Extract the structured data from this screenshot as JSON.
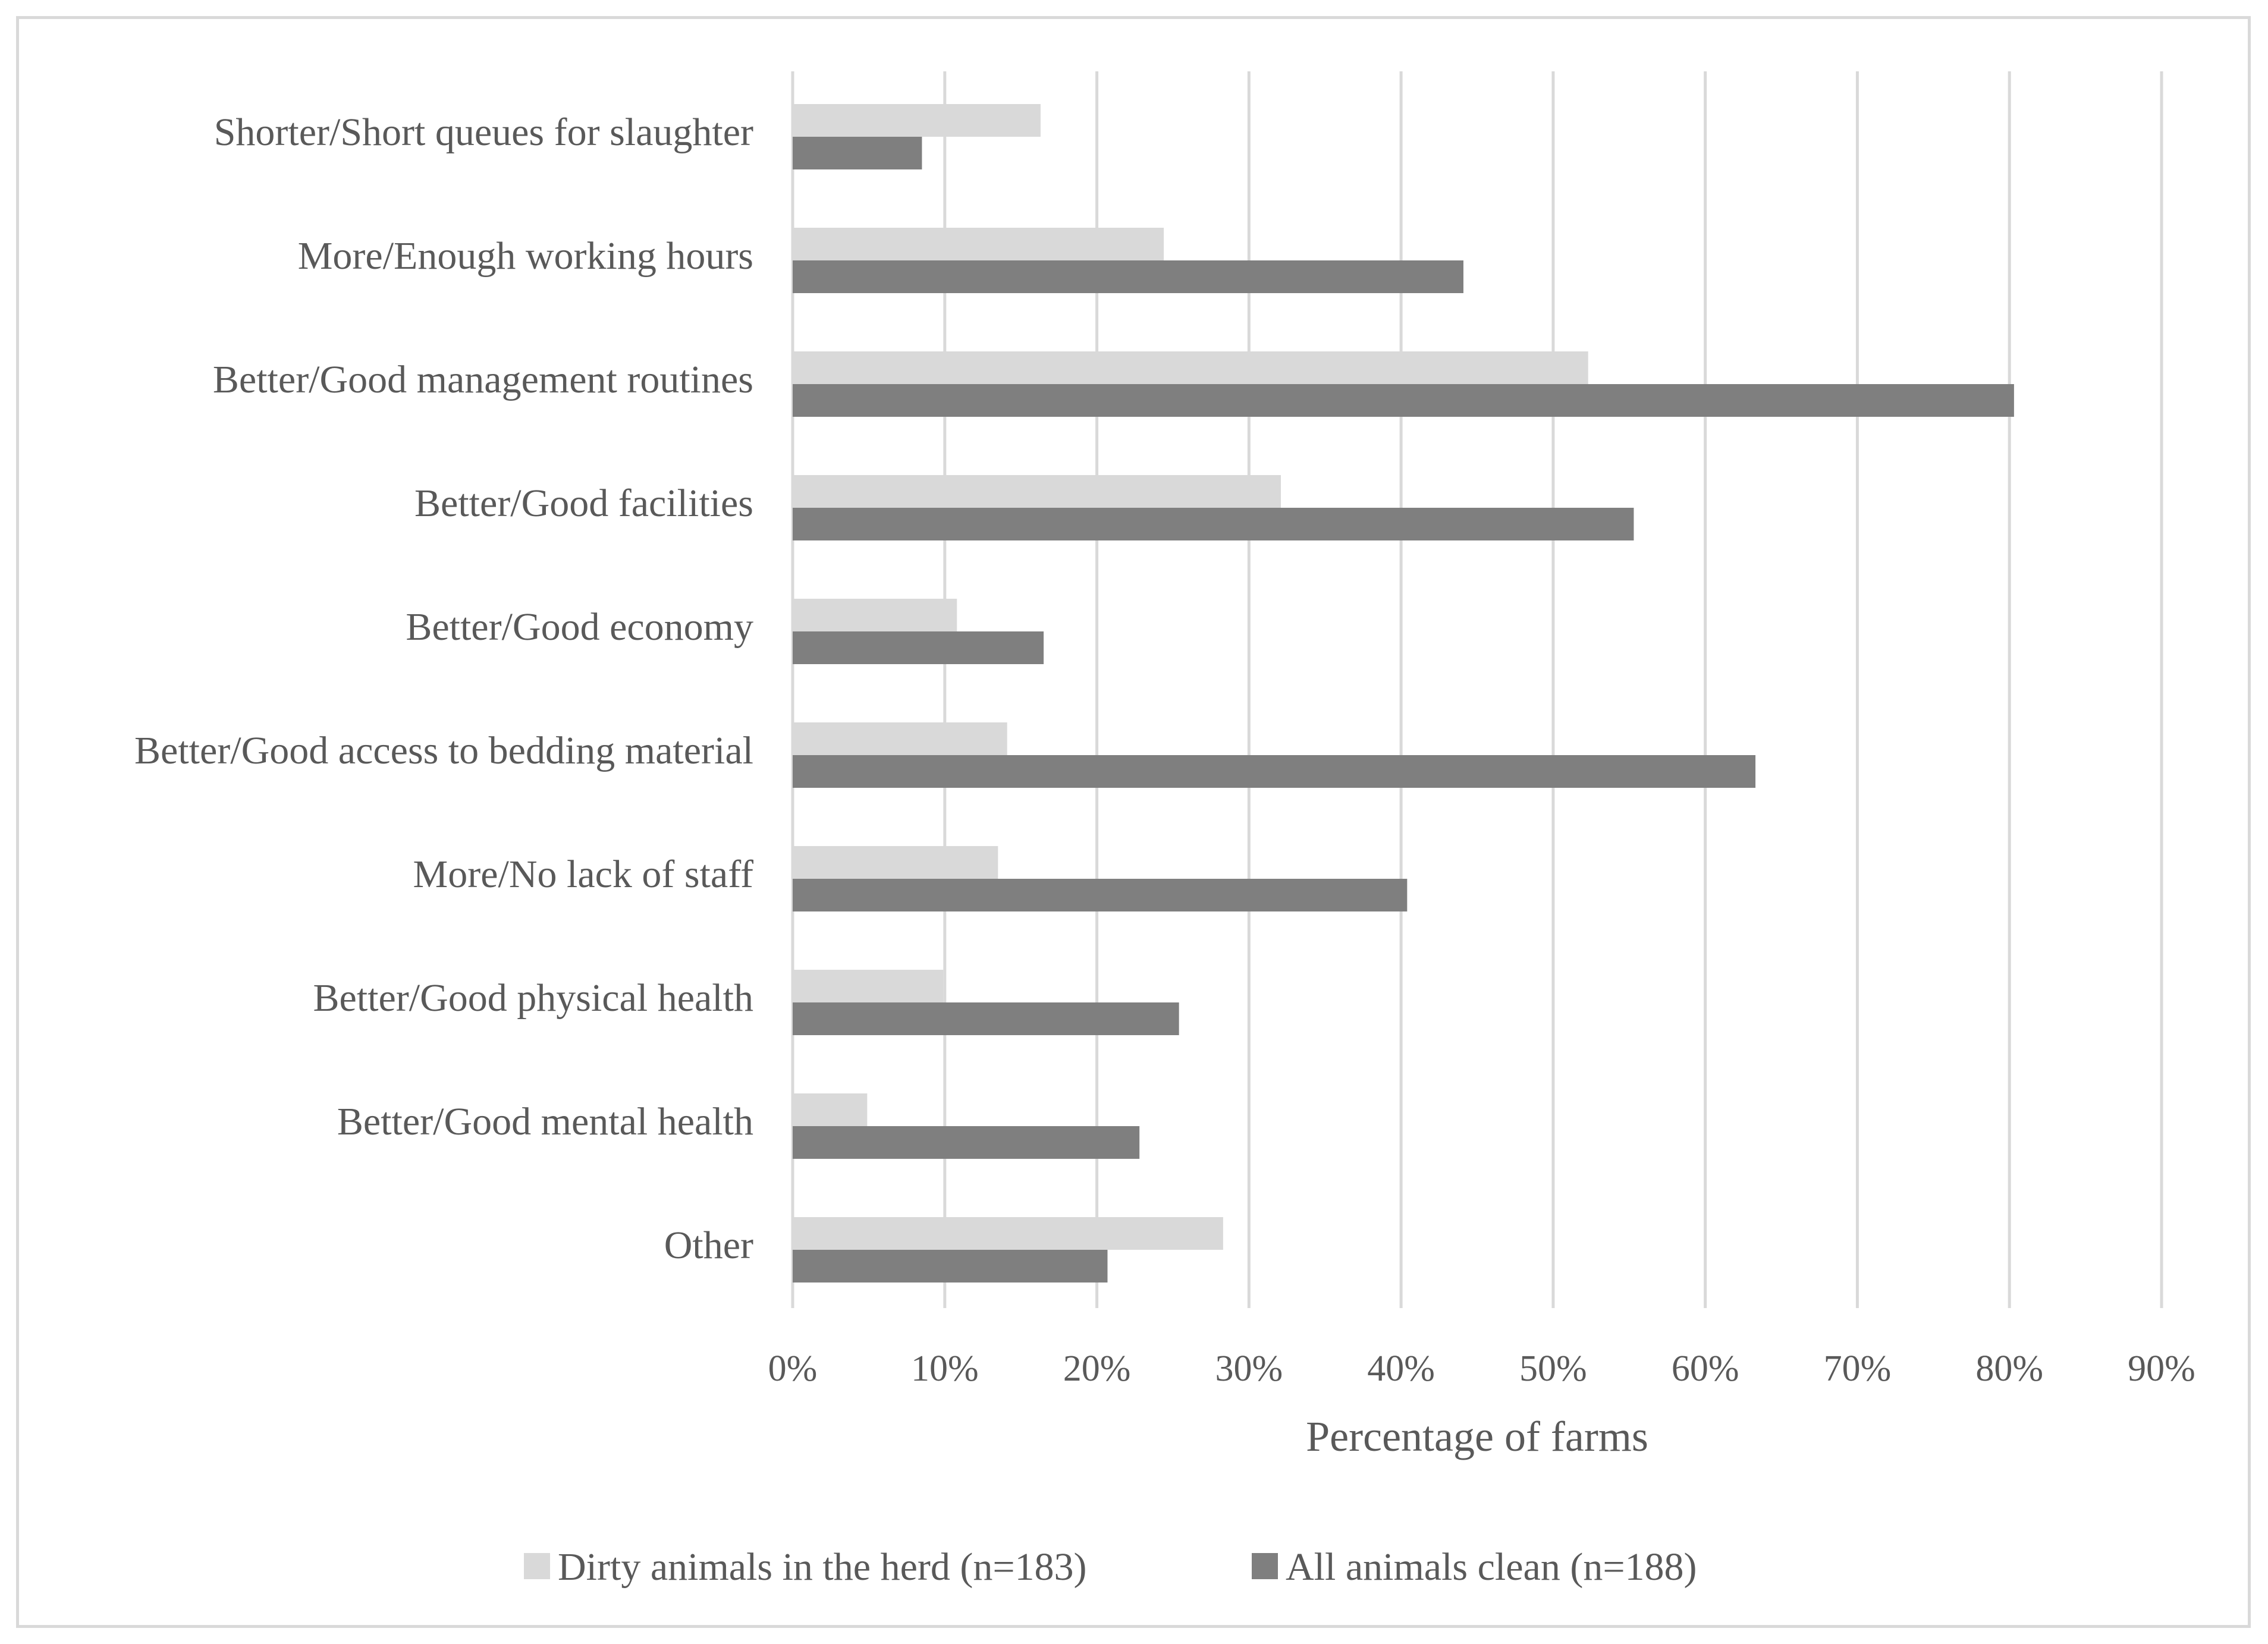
{
  "chart_data": {
    "type": "bar",
    "orientation": "horizontal",
    "categories": [
      "Shorter/Short queues for slaughter",
      "More/Enough working hours",
      "Better/Good management routines",
      "Better/Good facilities",
      "Better/Good economy",
      "Better/Good access to bedding material",
      "More/No lack of staff",
      "Better/Good physical health",
      "Better/Good mental health",
      "Other"
    ],
    "series": [
      {
        "name": "Dirty animals in the herd (n=183)",
        "color": "#d9d9d9",
        "values": [
          16.3,
          24.4,
          52.3,
          32.1,
          10.8,
          14.1,
          13.5,
          9.9,
          4.9,
          28.3
        ]
      },
      {
        "name": "All animals clean (n=188)",
        "color": "#7f7f7f",
        "values": [
          8.5,
          44.1,
          80.3,
          55.3,
          16.5,
          63.3,
          40.4,
          25.4,
          22.8,
          20.7
        ]
      }
    ],
    "xlim": [
      0,
      90
    ],
    "xticks": [
      "0%",
      "10%",
      "20%",
      "30%",
      "40%",
      "50%",
      "60%",
      "70%",
      "80%",
      "90%"
    ],
    "xlabel": "Percentage of farms",
    "ylabel": "",
    "title": "",
    "grid": "vertical",
    "gridColor": "#d9d9d9",
    "legend": "bottom"
  }
}
